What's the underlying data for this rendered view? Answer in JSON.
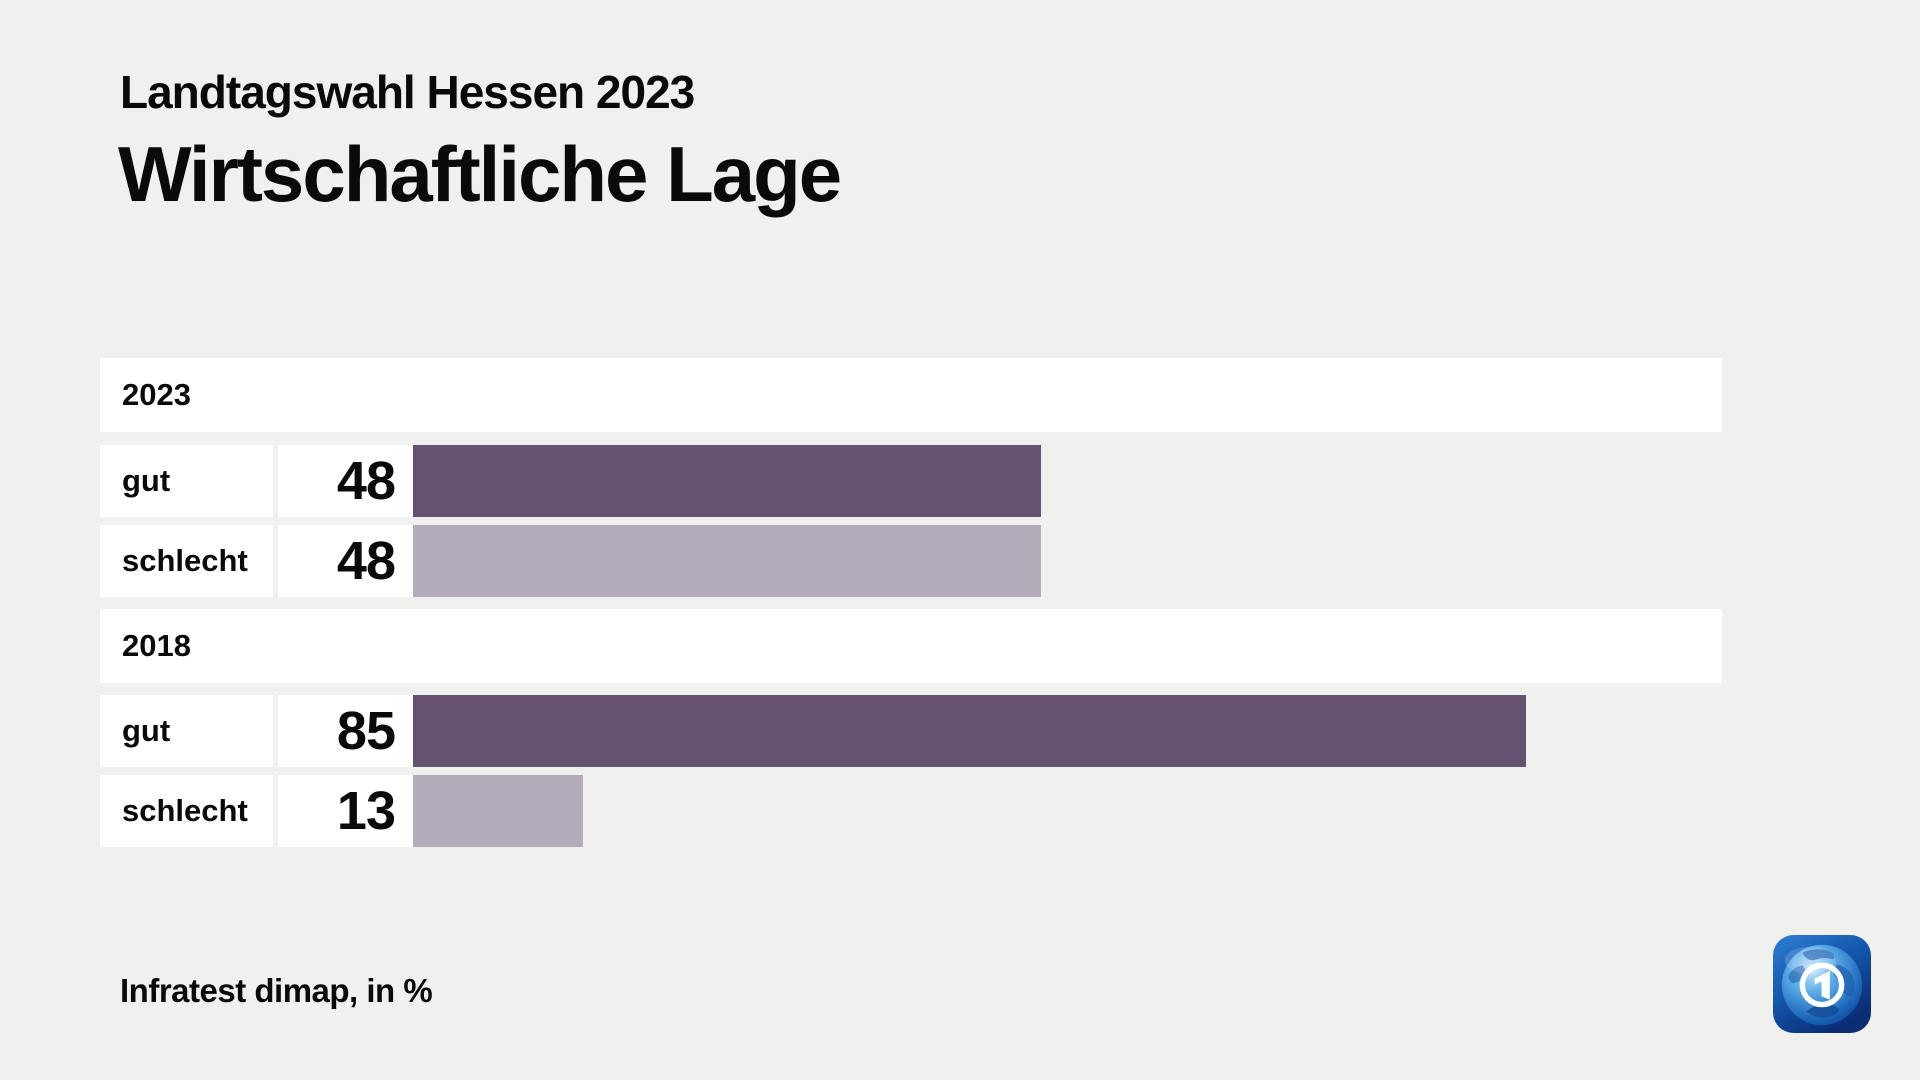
{
  "header": {
    "kicker": "Landtagswahl Hessen 2023",
    "title": "Wirtschaftliche Lage"
  },
  "footer": {
    "source": "Infratest dimap, in %"
  },
  "chart_data": {
    "type": "bar",
    "orientation": "horizontal",
    "title": "Wirtschaftliche Lage",
    "subtitle": "Landtagswahl Hessen 2023",
    "unit": "%",
    "xlim": [
      0,
      100
    ],
    "source": "Infratest dimap, in %",
    "groups": [
      {
        "label": "2023",
        "rows": [
          {
            "label": "gut",
            "value": 48,
            "value_label": "48"
          },
          {
            "label": "schlecht",
            "value": 48,
            "value_label": "48"
          }
        ]
      },
      {
        "label": "2018",
        "rows": [
          {
            "label": "gut",
            "value": 85,
            "value_label": "85"
          },
          {
            "label": "schlecht",
            "value": 13,
            "value_label": "13"
          }
        ]
      }
    ],
    "colors": {
      "gut": "#655170",
      "schlecht": "#b4acbb",
      "row_background": "#ffffff",
      "page_background": "#f0f0ef",
      "text": "#0a0a0a"
    }
  }
}
